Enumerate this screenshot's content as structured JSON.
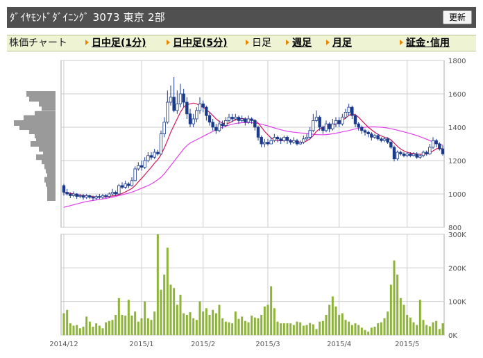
{
  "header": {
    "title": "ﾀﾞｲﾔﾓﾝﾄﾞﾀﾞｲﾆﾝｸﾞ  3073  東京 2部",
    "refresh_label": "更新"
  },
  "nav": {
    "label": "株価チャート",
    "items": [
      {
        "label": "日中足(1分)",
        "link": true
      },
      {
        "label": "日中足(5分)",
        "link": true
      },
      {
        "label": "日足",
        "link": false
      },
      {
        "label": "週足",
        "link": true
      },
      {
        "label": "月足",
        "link": true
      },
      {
        "label": "証金･信用",
        "link": true
      }
    ]
  },
  "colors": {
    "up": "#ffffff",
    "down": "#1a3a8c",
    "ma_short": "#d4145a",
    "ma_long": "#e040e8",
    "volume": "#8db33a",
    "profile": "#9a9a9a",
    "grid": "#cccccc"
  },
  "chart_data": {
    "type": "candlestick",
    "price_axis": {
      "ylim": [
        800,
        1800
      ],
      "ticks": [
        "800",
        "1000",
        "1200",
        "1400",
        "1600",
        "1800"
      ]
    },
    "volume_axis": {
      "ylim": [
        0,
        300000
      ],
      "ticks": [
        "0K",
        "100K",
        "200K",
        "300K"
      ]
    },
    "x_ticks": [
      "2014/12",
      "2015/1",
      "2015/2",
      "2015/3",
      "2015/4",
      "2015/5"
    ],
    "x_tick_index": [
      0,
      24,
      43,
      63,
      85,
      106
    ],
    "candles": [
      [
        1050,
        1010,
        1060,
        990
      ],
      [
        1010,
        1000,
        1030,
        990
      ],
      [
        1000,
        990,
        1010,
        975
      ],
      [
        990,
        1000,
        1015,
        980
      ],
      [
        1000,
        985,
        1005,
        970
      ],
      [
        985,
        990,
        1000,
        975
      ],
      [
        990,
        980,
        1000,
        965
      ],
      [
        980,
        990,
        1000,
        970
      ],
      [
        990,
        980,
        995,
        970
      ],
      [
        980,
        975,
        990,
        960
      ],
      [
        975,
        985,
        995,
        965
      ],
      [
        985,
        980,
        1000,
        970
      ],
      [
        980,
        990,
        1000,
        970
      ],
      [
        990,
        985,
        1000,
        975
      ],
      [
        985,
        1000,
        1010,
        975
      ],
      [
        1000,
        1010,
        1030,
        990
      ],
      [
        1010,
        1000,
        1020,
        990
      ],
      [
        1000,
        1050,
        1060,
        995
      ],
      [
        1050,
        1040,
        1070,
        1030
      ],
      [
        1040,
        1060,
        1080,
        1030
      ],
      [
        1060,
        1050,
        1070,
        1035
      ],
      [
        1050,
        1080,
        1100,
        1045
      ],
      [
        1080,
        1150,
        1165,
        1075
      ],
      [
        1150,
        1170,
        1190,
        1140
      ],
      [
        1170,
        1160,
        1200,
        1140
      ],
      [
        1160,
        1200,
        1220,
        1150
      ],
      [
        1200,
        1230,
        1250,
        1190
      ],
      [
        1230,
        1220,
        1250,
        1205
      ],
      [
        1220,
        1250,
        1270,
        1210
      ],
      [
        1250,
        1240,
        1265,
        1230
      ],
      [
        1240,
        1360,
        1380,
        1235
      ],
      [
        1360,
        1430,
        1460,
        1340
      ],
      [
        1430,
        1550,
        1620,
        1420
      ],
      [
        1550,
        1580,
        1650,
        1530
      ],
      [
        1580,
        1500,
        1700,
        1490
      ],
      [
        1500,
        1540,
        1620,
        1480
      ],
      [
        1540,
        1600,
        1660,
        1520
      ],
      [
        1600,
        1550,
        1630,
        1520
      ],
      [
        1550,
        1480,
        1580,
        1450
      ],
      [
        1480,
        1420,
        1510,
        1400
      ],
      [
        1420,
        1450,
        1480,
        1400
      ],
      [
        1450,
        1500,
        1520,
        1430
      ],
      [
        1500,
        1540,
        1580,
        1480
      ],
      [
        1540,
        1520,
        1560,
        1490
      ],
      [
        1520,
        1470,
        1530,
        1440
      ],
      [
        1470,
        1430,
        1490,
        1410
      ],
      [
        1430,
        1400,
        1450,
        1380
      ],
      [
        1400,
        1380,
        1420,
        1360
      ],
      [
        1380,
        1420,
        1440,
        1370
      ],
      [
        1420,
        1410,
        1440,
        1390
      ],
      [
        1410,
        1440,
        1460,
        1400
      ],
      [
        1440,
        1460,
        1480,
        1430
      ],
      [
        1460,
        1450,
        1480,
        1430
      ],
      [
        1450,
        1460,
        1480,
        1440
      ],
      [
        1460,
        1440,
        1470,
        1420
      ],
      [
        1440,
        1450,
        1470,
        1430
      ],
      [
        1450,
        1430,
        1460,
        1410
      ],
      [
        1430,
        1450,
        1470,
        1420
      ],
      [
        1450,
        1440,
        1460,
        1420
      ],
      [
        1440,
        1400,
        1450,
        1380
      ],
      [
        1400,
        1340,
        1410,
        1320
      ],
      [
        1340,
        1300,
        1350,
        1280
      ],
      [
        1300,
        1310,
        1330,
        1280
      ],
      [
        1310,
        1300,
        1330,
        1290
      ],
      [
        1300,
        1320,
        1340,
        1300
      ],
      [
        1320,
        1340,
        1360,
        1310
      ],
      [
        1340,
        1330,
        1350,
        1310
      ],
      [
        1330,
        1320,
        1340,
        1300
      ],
      [
        1320,
        1340,
        1350,
        1310
      ],
      [
        1340,
        1320,
        1350,
        1300
      ],
      [
        1320,
        1310,
        1330,
        1295
      ],
      [
        1310,
        1320,
        1340,
        1300
      ],
      [
        1320,
        1300,
        1330,
        1290
      ],
      [
        1300,
        1310,
        1320,
        1295
      ],
      [
        1310,
        1330,
        1350,
        1300
      ],
      [
        1330,
        1340,
        1360,
        1320
      ],
      [
        1340,
        1380,
        1400,
        1330
      ],
      [
        1380,
        1440,
        1480,
        1370
      ],
      [
        1440,
        1460,
        1500,
        1430
      ],
      [
        1460,
        1400,
        1470,
        1380
      ],
      [
        1400,
        1380,
        1410,
        1360
      ],
      [
        1380,
        1420,
        1440,
        1370
      ],
      [
        1420,
        1390,
        1430,
        1370
      ],
      [
        1390,
        1420,
        1450,
        1380
      ],
      [
        1420,
        1440,
        1460,
        1400
      ],
      [
        1440,
        1420,
        1460,
        1400
      ],
      [
        1420,
        1460,
        1480,
        1410
      ],
      [
        1460,
        1490,
        1510,
        1450
      ],
      [
        1490,
        1520,
        1540,
        1470
      ],
      [
        1520,
        1470,
        1530,
        1450
      ],
      [
        1470,
        1420,
        1480,
        1400
      ],
      [
        1420,
        1400,
        1430,
        1380
      ],
      [
        1400,
        1380,
        1410,
        1360
      ],
      [
        1380,
        1370,
        1390,
        1350
      ],
      [
        1370,
        1360,
        1380,
        1340
      ],
      [
        1360,
        1340,
        1370,
        1320
      ],
      [
        1340,
        1350,
        1360,
        1330
      ],
      [
        1350,
        1330,
        1360,
        1320
      ],
      [
        1330,
        1320,
        1340,
        1310
      ],
      [
        1320,
        1330,
        1340,
        1310
      ],
      [
        1330,
        1310,
        1340,
        1300
      ],
      [
        1310,
        1280,
        1320,
        1270
      ],
      [
        1280,
        1210,
        1290,
        1195
      ],
      [
        1210,
        1250,
        1260,
        1200
      ],
      [
        1250,
        1240,
        1260,
        1230
      ],
      [
        1240,
        1230,
        1250,
        1220
      ],
      [
        1230,
        1240,
        1250,
        1220
      ],
      [
        1240,
        1230,
        1250,
        1220
      ],
      [
        1230,
        1240,
        1250,
        1225
      ],
      [
        1240,
        1220,
        1250,
        1210
      ],
      [
        1220,
        1230,
        1240,
        1210
      ],
      [
        1230,
        1250,
        1260,
        1220
      ],
      [
        1250,
        1240,
        1260,
        1230
      ],
      [
        1240,
        1280,
        1300,
        1235
      ],
      [
        1280,
        1320,
        1340,
        1270
      ],
      [
        1320,
        1300,
        1330,
        1280
      ],
      [
        1300,
        1270,
        1310,
        1260
      ],
      [
        1270,
        1240,
        1290,
        1230
      ]
    ],
    "ma_short": [
      1010,
      1008,
      1004,
      1000,
      996,
      993,
      990,
      988,
      986,
      984,
      982,
      981,
      982,
      983,
      985,
      988,
      990,
      996,
      1003,
      1012,
      1022,
      1033,
      1050,
      1072,
      1093,
      1115,
      1138,
      1160,
      1185,
      1205,
      1235,
      1275,
      1320,
      1370,
      1410,
      1450,
      1490,
      1520,
      1535,
      1540,
      1545,
      1540,
      1530,
      1520,
      1505,
      1490,
      1470,
      1450,
      1435,
      1425,
      1420,
      1425,
      1435,
      1445,
      1450,
      1452,
      1450,
      1448,
      1445,
      1440,
      1425,
      1400,
      1375,
      1355,
      1335,
      1325,
      1320,
      1318,
      1320,
      1322,
      1320,
      1318,
      1315,
      1310,
      1310,
      1318,
      1330,
      1350,
      1375,
      1390,
      1400,
      1405,
      1408,
      1412,
      1420,
      1430,
      1440,
      1455,
      1470,
      1480,
      1475,
      1460,
      1440,
      1420,
      1400,
      1385,
      1370,
      1358,
      1348,
      1340,
      1335,
      1325,
      1305,
      1285,
      1270,
      1258,
      1250,
      1245,
      1242,
      1240,
      1238,
      1238,
      1240,
      1245,
      1258,
      1270,
      1275,
      1270
    ],
    "ma_long": [
      920,
      925,
      930,
      935,
      940,
      945,
      950,
      955,
      958,
      961,
      964,
      967,
      970,
      973,
      977,
      981,
      985,
      990,
      995,
      1000,
      1005,
      1011,
      1018,
      1026,
      1034,
      1042,
      1050,
      1060,
      1072,
      1085,
      1100,
      1120,
      1145,
      1170,
      1195,
      1220,
      1245,
      1270,
      1290,
      1305,
      1315,
      1325,
      1335,
      1345,
      1355,
      1365,
      1375,
      1385,
      1393,
      1400,
      1407,
      1413,
      1418,
      1422,
      1425,
      1427,
      1428,
      1428,
      1427,
      1425,
      1422,
      1418,
      1413,
      1408,
      1402,
      1396,
      1390,
      1385,
      1380,
      1376,
      1373,
      1370,
      1368,
      1366,
      1364,
      1362,
      1360,
      1358,
      1356,
      1355,
      1355,
      1356,
      1358,
      1361,
      1364,
      1368,
      1372,
      1376,
      1380,
      1385,
      1390,
      1394,
      1397,
      1400,
      1401,
      1402,
      1402,
      1401,
      1400,
      1398,
      1395,
      1391,
      1387,
      1382,
      1377,
      1372,
      1367,
      1362,
      1356,
      1350,
      1343,
      1336,
      1328,
      1320,
      1312,
      1305,
      1298,
      1292
    ],
    "volumes": [
      65000,
      75000,
      35000,
      28000,
      30000,
      20000,
      25000,
      55000,
      40000,
      25000,
      35000,
      28000,
      20000,
      38000,
      42000,
      45000,
      60000,
      110000,
      60000,
      58000,
      105000,
      58000,
      70000,
      40000,
      50000,
      100000,
      50000,
      45000,
      70000,
      300000,
      135000,
      180000,
      260000,
      150000,
      140000,
      90000,
      120000,
      65000,
      60000,
      68000,
      50000,
      45000,
      100000,
      70000,
      80000,
      60000,
      75000,
      65000,
      90000,
      50000,
      40000,
      38000,
      35000,
      70000,
      48000,
      55000,
      42000,
      38000,
      58000,
      52000,
      50000,
      60000,
      85000,
      90000,
      145000,
      80000,
      40000,
      35000,
      35000,
      35000,
      35000,
      30000,
      40000,
      38000,
      28000,
      30000,
      36000,
      32000,
      18000,
      40000,
      42000,
      60000,
      90000,
      115000,
      85000,
      60000,
      65000,
      45000,
      40000,
      30000,
      35000,
      30000,
      22000,
      15000,
      10000,
      22000,
      25000,
      35000,
      38000,
      50000,
      70000,
      150000,
      222000,
      180000,
      110000,
      90000,
      60000,
      52000,
      38000,
      30000,
      105000,
      45000,
      30000,
      26000,
      38000,
      42000,
      18000,
      35000
    ],
    "volume_profile": [
      {
        "price": 1600,
        "width": 42
      },
      {
        "price": 1570,
        "width": 38
      },
      {
        "price": 1540,
        "width": 24
      },
      {
        "price": 1515,
        "width": 20
      },
      {
        "price": 1480,
        "width": 30
      },
      {
        "price": 1455,
        "width": 46
      },
      {
        "price": 1425,
        "width": 60
      },
      {
        "price": 1400,
        "width": 52
      },
      {
        "price": 1375,
        "width": 38
      },
      {
        "price": 1350,
        "width": 30
      },
      {
        "price": 1325,
        "width": 28
      },
      {
        "price": 1300,
        "width": 36
      },
      {
        "price": 1270,
        "width": 24
      },
      {
        "price": 1245,
        "width": 18
      },
      {
        "price": 1220,
        "width": 28
      },
      {
        "price": 1195,
        "width": 20
      },
      {
        "price": 1165,
        "width": 16
      },
      {
        "price": 1140,
        "width": 14
      },
      {
        "price": 1110,
        "width": 12
      },
      {
        "price": 1085,
        "width": 16
      },
      {
        "price": 1060,
        "width": 14
      },
      {
        "price": 1030,
        "width": 12
      },
      {
        "price": 1000,
        "width": 12
      },
      {
        "price": 975,
        "width": 12
      }
    ]
  }
}
